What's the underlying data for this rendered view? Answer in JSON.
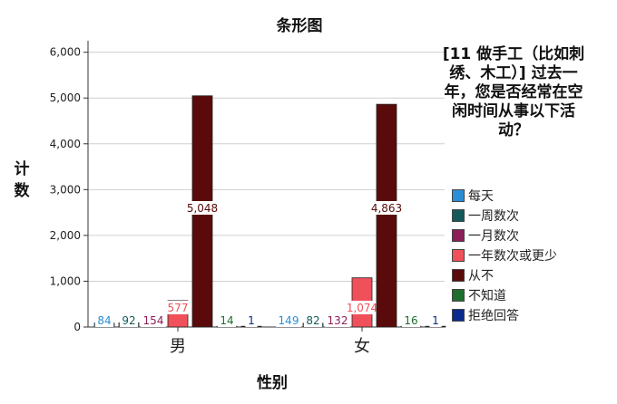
{
  "chart_data": {
    "type": "bar",
    "title": "条形图",
    "xlabel": "性别",
    "ylabel": "计数",
    "legend_title": "[11 做手工（比如刺绣、木工）] 过去一年，您是否经常在空闲时间从事以下活动？",
    "legend_placement": "right",
    "grid": true,
    "categories": [
      "男",
      "女"
    ],
    "ylim": [
      0,
      6250
    ],
    "yticks": [
      0,
      1000,
      2000,
      3000,
      4000,
      5000,
      6000
    ],
    "ytick_labels": [
      "0",
      "1,000",
      "2,000",
      "3,000",
      "4,000",
      "5,000",
      "6,000"
    ],
    "series": [
      {
        "name": "每天",
        "color": "#2b8fd8",
        "values": [
          84,
          149
        ],
        "labels": [
          "84",
          "149"
        ]
      },
      {
        "name": "一周数次",
        "color": "#145a5a",
        "values": [
          92,
          82
        ],
        "labels": [
          "92",
          "82"
        ]
      },
      {
        "name": "一月数次",
        "color": "#8c1e5a",
        "values": [
          154,
          132
        ],
        "labels": [
          "154",
          "132"
        ]
      },
      {
        "name": "一年数次或更少",
        "color": "#f0505a",
        "values": [
          577,
          1074
        ],
        "labels": [
          "577",
          "1,074"
        ]
      },
      {
        "name": "从不",
        "color": "#5a0a0a",
        "values": [
          5048,
          4863
        ],
        "labels": [
          "5,048",
          "4,863"
        ]
      },
      {
        "name": "不知道",
        "color": "#1e6e2e",
        "values": [
          14,
          16
        ],
        "labels": [
          "14",
          "16"
        ]
      },
      {
        "name": "拒绝回答",
        "color": "#0a2a8c",
        "values": [
          1,
          1
        ],
        "labels": [
          "1",
          "1"
        ]
      }
    ]
  }
}
